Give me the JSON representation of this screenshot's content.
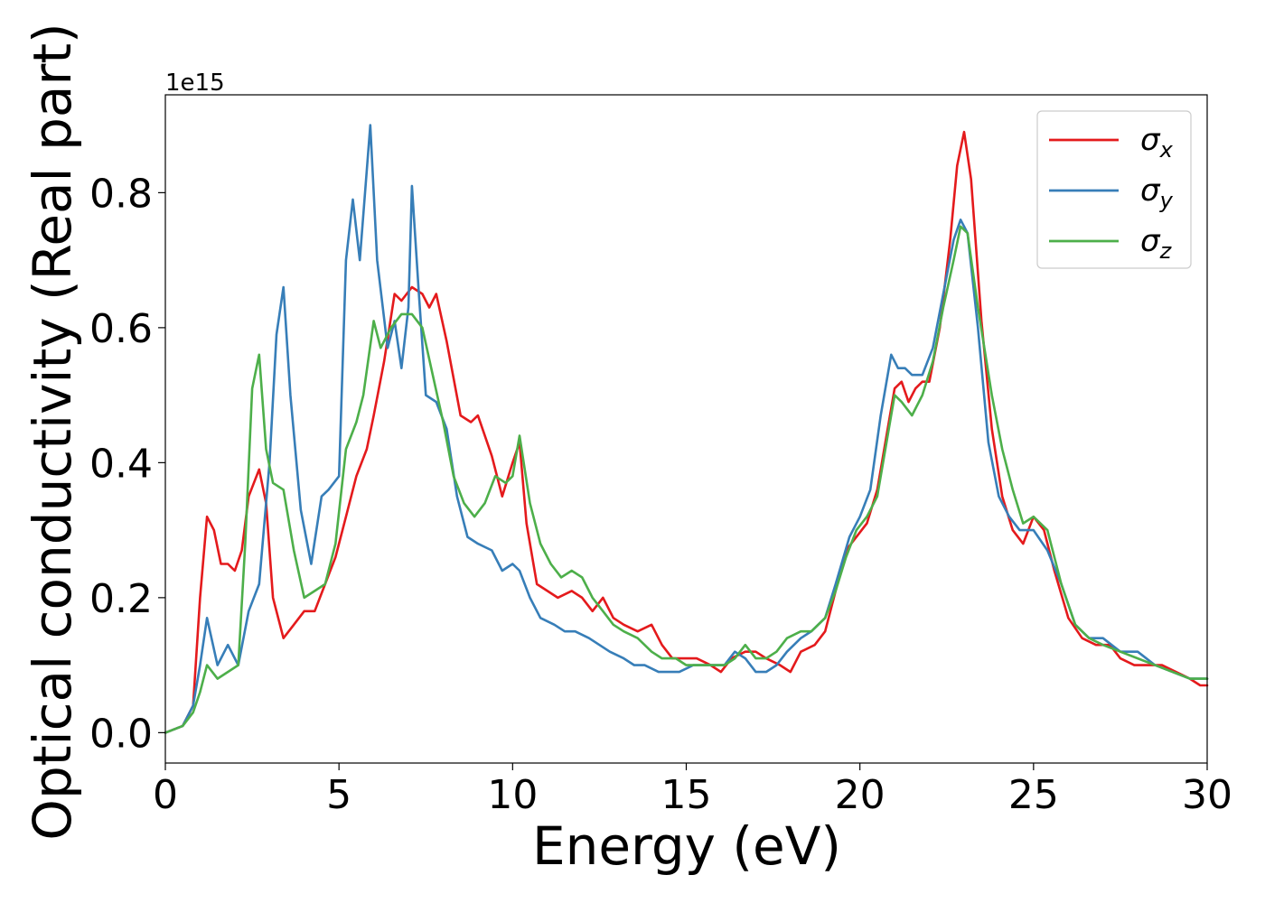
{
  "chart_data": {
    "type": "line",
    "xlabel": "Energy (eV)",
    "ylabel": "Optical conductivity (Real part)",
    "offset_text": "1e15",
    "xlim": [
      0,
      30
    ],
    "ylim": [
      -0.045,
      0.945
    ],
    "xticks": [
      0,
      5,
      10,
      15,
      20,
      25,
      30
    ],
    "xtick_labels": [
      "0",
      "5",
      "10",
      "15",
      "20",
      "25",
      "30"
    ],
    "yticks": [
      0.0,
      0.2,
      0.4,
      0.6,
      0.8
    ],
    "ytick_labels": [
      "0.0",
      "0.2",
      "0.4",
      "0.6",
      "0.8"
    ],
    "grid": false,
    "legend_position": "top-right",
    "series": [
      {
        "name": "σx",
        "symbol": "σ",
        "subscript": "x",
        "color": "#e41a1c",
        "x": [
          0,
          0.5,
          0.8,
          1.0,
          1.2,
          1.4,
          1.6,
          1.8,
          2.0,
          2.2,
          2.4,
          2.7,
          2.9,
          3.1,
          3.4,
          3.7,
          4.0,
          4.3,
          4.6,
          4.9,
          5.2,
          5.5,
          5.8,
          6.0,
          6.3,
          6.6,
          6.8,
          7.1,
          7.4,
          7.6,
          7.8,
          8.1,
          8.5,
          8.8,
          9.0,
          9.4,
          9.7,
          10.0,
          10.2,
          10.4,
          10.7,
          11.0,
          11.3,
          11.7,
          12.0,
          12.3,
          12.6,
          12.9,
          13.2,
          13.6,
          14.0,
          14.3,
          14.6,
          15.0,
          15.3,
          15.7,
          16.0,
          16.3,
          16.7,
          17.0,
          17.3,
          17.7,
          18.0,
          18.3,
          18.7,
          19.0,
          19.3,
          19.6,
          19.9,
          20.2,
          20.5,
          20.8,
          21.0,
          21.2,
          21.4,
          21.6,
          21.8,
          22.0,
          22.3,
          22.6,
          22.8,
          23.0,
          23.2,
          23.5,
          23.8,
          24.1,
          24.4,
          24.7,
          25.0,
          25.3,
          25.6,
          26.0,
          26.4,
          26.8,
          27.2,
          27.5,
          27.9,
          28.3,
          28.7,
          29.1,
          29.5,
          29.8,
          30.0
        ],
        "y": [
          0.0,
          0.01,
          0.04,
          0.2,
          0.32,
          0.3,
          0.25,
          0.25,
          0.24,
          0.27,
          0.35,
          0.39,
          0.34,
          0.2,
          0.14,
          0.16,
          0.18,
          0.18,
          0.22,
          0.26,
          0.32,
          0.38,
          0.42,
          0.47,
          0.55,
          0.65,
          0.64,
          0.66,
          0.65,
          0.63,
          0.65,
          0.58,
          0.47,
          0.46,
          0.47,
          0.41,
          0.35,
          0.4,
          0.43,
          0.31,
          0.22,
          0.21,
          0.2,
          0.21,
          0.2,
          0.18,
          0.2,
          0.17,
          0.16,
          0.15,
          0.16,
          0.13,
          0.11,
          0.11,
          0.11,
          0.1,
          0.09,
          0.11,
          0.12,
          0.12,
          0.11,
          0.1,
          0.09,
          0.12,
          0.13,
          0.15,
          0.21,
          0.27,
          0.29,
          0.31,
          0.36,
          0.45,
          0.51,
          0.52,
          0.49,
          0.51,
          0.52,
          0.52,
          0.6,
          0.73,
          0.84,
          0.89,
          0.82,
          0.61,
          0.45,
          0.35,
          0.3,
          0.28,
          0.32,
          0.3,
          0.24,
          0.17,
          0.14,
          0.13,
          0.13,
          0.11,
          0.1,
          0.1,
          0.1,
          0.09,
          0.08,
          0.07,
          0.07
        ]
      },
      {
        "name": "σy",
        "symbol": "σ",
        "subscript": "y",
        "color": "#377eb8",
        "x": [
          0,
          0.5,
          0.8,
          1.0,
          1.2,
          1.5,
          1.8,
          2.1,
          2.4,
          2.7,
          3.0,
          3.2,
          3.4,
          3.6,
          3.9,
          4.2,
          4.5,
          4.7,
          5.0,
          5.2,
          5.4,
          5.6,
          5.9,
          6.1,
          6.4,
          6.6,
          6.8,
          7.0,
          7.1,
          7.3,
          7.5,
          7.8,
          8.1,
          8.4,
          8.7,
          9.0,
          9.4,
          9.7,
          10.0,
          10.2,
          10.5,
          10.8,
          11.2,
          11.5,
          11.8,
          12.2,
          12.5,
          12.8,
          13.2,
          13.5,
          13.8,
          14.2,
          14.5,
          14.8,
          15.2,
          15.5,
          15.8,
          16.1,
          16.4,
          16.7,
          17.0,
          17.3,
          17.6,
          17.9,
          18.3,
          18.6,
          19.0,
          19.3,
          19.7,
          20.0,
          20.3,
          20.6,
          20.9,
          21.1,
          21.3,
          21.5,
          21.8,
          22.1,
          22.4,
          22.7,
          22.9,
          23.1,
          23.4,
          23.7,
          24.0,
          24.3,
          24.6,
          25.0,
          25.4,
          25.8,
          26.2,
          26.6,
          27.0,
          27.5,
          28.0,
          28.5,
          29.0,
          29.5,
          30.0
        ],
        "y": [
          0.0,
          0.01,
          0.04,
          0.1,
          0.17,
          0.1,
          0.13,
          0.1,
          0.18,
          0.22,
          0.4,
          0.59,
          0.66,
          0.5,
          0.33,
          0.25,
          0.35,
          0.36,
          0.38,
          0.7,
          0.79,
          0.7,
          0.9,
          0.7,
          0.57,
          0.61,
          0.54,
          0.63,
          0.81,
          0.65,
          0.5,
          0.49,
          0.45,
          0.35,
          0.29,
          0.28,
          0.27,
          0.24,
          0.25,
          0.24,
          0.2,
          0.17,
          0.16,
          0.15,
          0.15,
          0.14,
          0.13,
          0.12,
          0.11,
          0.1,
          0.1,
          0.09,
          0.09,
          0.09,
          0.1,
          0.1,
          0.1,
          0.1,
          0.12,
          0.11,
          0.09,
          0.09,
          0.1,
          0.12,
          0.14,
          0.15,
          0.17,
          0.22,
          0.29,
          0.32,
          0.36,
          0.47,
          0.56,
          0.54,
          0.54,
          0.53,
          0.53,
          0.57,
          0.65,
          0.73,
          0.76,
          0.74,
          0.6,
          0.43,
          0.35,
          0.32,
          0.3,
          0.3,
          0.27,
          0.22,
          0.16,
          0.14,
          0.14,
          0.12,
          0.12,
          0.1,
          0.09,
          0.08,
          0.08
        ]
      },
      {
        "name": "σz",
        "symbol": "σ",
        "subscript": "z",
        "color": "#4daf4a",
        "x": [
          0,
          0.5,
          0.8,
          1.0,
          1.2,
          1.5,
          1.8,
          2.1,
          2.3,
          2.5,
          2.7,
          2.9,
          3.1,
          3.4,
          3.7,
          4.0,
          4.3,
          4.6,
          4.9,
          5.2,
          5.5,
          5.7,
          6.0,
          6.2,
          6.5,
          6.8,
          7.1,
          7.4,
          7.7,
          8.0,
          8.3,
          8.6,
          8.9,
          9.2,
          9.5,
          9.8,
          10.0,
          10.2,
          10.5,
          10.8,
          11.1,
          11.4,
          11.7,
          12.0,
          12.3,
          12.6,
          12.9,
          13.2,
          13.6,
          14.0,
          14.3,
          14.7,
          15.0,
          15.4,
          15.8,
          16.1,
          16.4,
          16.7,
          17.0,
          17.3,
          17.6,
          17.9,
          18.3,
          18.6,
          19.0,
          19.3,
          19.6,
          19.9,
          20.2,
          20.5,
          20.8,
          21.0,
          21.2,
          21.5,
          21.8,
          22.1,
          22.4,
          22.7,
          22.9,
          23.1,
          23.4,
          23.8,
          24.1,
          24.4,
          24.7,
          25.0,
          25.4,
          25.8,
          26.2,
          26.6,
          27.0,
          27.5,
          28.0,
          28.5,
          29.0,
          29.5,
          30.0
        ],
        "y": [
          0.0,
          0.01,
          0.03,
          0.06,
          0.1,
          0.08,
          0.09,
          0.1,
          0.28,
          0.51,
          0.56,
          0.42,
          0.37,
          0.36,
          0.27,
          0.2,
          0.21,
          0.22,
          0.28,
          0.42,
          0.46,
          0.5,
          0.61,
          0.57,
          0.6,
          0.62,
          0.62,
          0.6,
          0.53,
          0.46,
          0.38,
          0.34,
          0.32,
          0.34,
          0.38,
          0.37,
          0.38,
          0.44,
          0.34,
          0.28,
          0.25,
          0.23,
          0.24,
          0.23,
          0.2,
          0.18,
          0.16,
          0.15,
          0.14,
          0.12,
          0.11,
          0.11,
          0.1,
          0.1,
          0.1,
          0.1,
          0.11,
          0.13,
          0.11,
          0.11,
          0.12,
          0.14,
          0.15,
          0.15,
          0.17,
          0.21,
          0.26,
          0.3,
          0.32,
          0.35,
          0.44,
          0.5,
          0.49,
          0.47,
          0.5,
          0.55,
          0.63,
          0.7,
          0.75,
          0.74,
          0.63,
          0.5,
          0.42,
          0.36,
          0.31,
          0.32,
          0.3,
          0.22,
          0.16,
          0.14,
          0.13,
          0.12,
          0.11,
          0.1,
          0.09,
          0.08,
          0.08
        ]
      }
    ]
  }
}
